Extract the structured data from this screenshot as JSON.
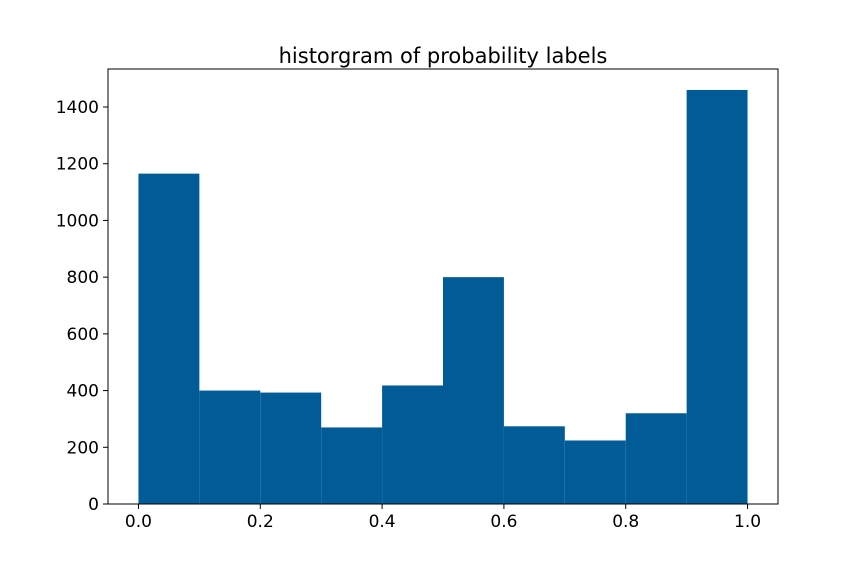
{
  "chart_data": {
    "type": "bar",
    "title": "historgram of probability labels",
    "xlabel": "",
    "ylabel": "",
    "bin_edges": [
      0.0,
      0.1,
      0.2,
      0.3,
      0.4,
      0.5,
      0.6,
      0.7,
      0.8,
      0.9,
      1.0
    ],
    "values": [
      1165,
      400,
      393,
      270,
      418,
      800,
      274,
      224,
      320,
      1460
    ],
    "xlim": [
      -0.05,
      1.05
    ],
    "ylim": [
      0,
      1534
    ],
    "x_ticks": [
      0.0,
      0.2,
      0.4,
      0.6,
      0.8,
      1.0
    ],
    "x_tick_labels": [
      "0.0",
      "0.2",
      "0.4",
      "0.6",
      "0.8",
      "1.0"
    ],
    "y_ticks": [
      0,
      200,
      400,
      600,
      800,
      1000,
      1200,
      1400
    ],
    "y_tick_labels": [
      "0",
      "200",
      "400",
      "600",
      "800",
      "1000",
      "1200",
      "1400"
    ],
    "grid": false,
    "bar_color": "#005b96"
  }
}
